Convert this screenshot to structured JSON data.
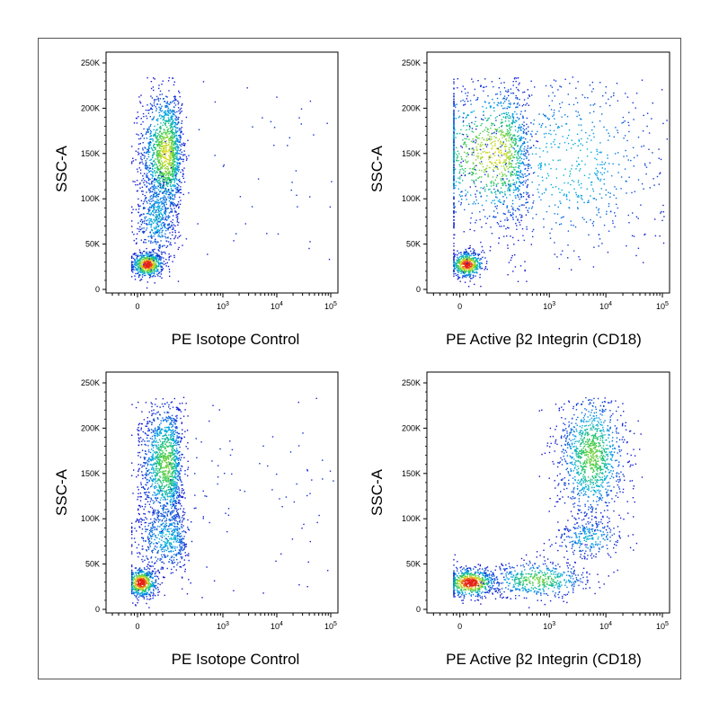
{
  "chart_data": [
    {
      "type": "scatter",
      "xlabel": "PE Isotope Control",
      "ylabel": "SSC-A",
      "x_scale": "biexponential",
      "x_ticks": [
        "0",
        "10^3",
        "10^4",
        "10^5"
      ],
      "y_ticks": [
        "0",
        "50K",
        "100K",
        "150K",
        "200K",
        "250K"
      ],
      "ylim": [
        0,
        250000
      ],
      "color_map": "density (blue-green-yellow-red)",
      "populations": [
        {
          "x_center": 30,
          "y_center": 28000,
          "spread_x": 25,
          "spread_y": 7000,
          "relative_size": 0.22,
          "peak": "red"
        },
        {
          "x_center": 90,
          "y_center": 150000,
          "spread_x": 40,
          "spread_y": 35000,
          "relative_size": 0.55,
          "peak": "yellow-green"
        },
        {
          "x_center": 60,
          "y_center": 80000,
          "spread_x": 35,
          "spread_y": 25000,
          "relative_size": 0.18,
          "peak": "blue"
        },
        {
          "x_center": 3000,
          "y_center": 130000,
          "spread_x": 20000,
          "spread_y": 90000,
          "relative_size": 0.05,
          "peak": "sparse"
        }
      ]
    },
    {
      "type": "scatter",
      "xlabel": "PE Active β2 Integrin (CD18)",
      "ylabel": "SSC-A",
      "x_scale": "biexponential",
      "x_ticks": [
        "0",
        "10^3",
        "10^4",
        "10^5"
      ],
      "y_ticks": [
        "0",
        "50K",
        "100K",
        "150K",
        "200K",
        "250K"
      ],
      "ylim": [
        0,
        250000
      ],
      "color_map": "density (blue-green-yellow-red)",
      "populations": [
        {
          "x_center": 20,
          "y_center": 28000,
          "spread_x": 25,
          "spread_y": 7000,
          "relative_size": 0.2,
          "peak": "red"
        },
        {
          "x_center": 120,
          "y_center": 150000,
          "spread_x": 150,
          "spread_y": 40000,
          "relative_size": 0.5,
          "peak": "yellow-green"
        },
        {
          "x_center": 2000,
          "y_center": 140000,
          "spread_x": 5000,
          "spread_y": 60000,
          "relative_size": 0.3,
          "peak": "blue"
        }
      ]
    },
    {
      "type": "scatter",
      "xlabel": "PE Isotope Control",
      "ylabel": "SSC-A",
      "x_scale": "biexponential",
      "x_ticks": [
        "0",
        "10^3",
        "10^4",
        "10^5"
      ],
      "y_ticks": [
        "0",
        "50K",
        "100K",
        "150K",
        "200K",
        "250K"
      ],
      "ylim": [
        0,
        250000
      ],
      "color_map": "density (blue-green-yellow-red)",
      "populations": [
        {
          "x_center": 10,
          "y_center": 30000,
          "spread_x": 25,
          "spread_y": 8000,
          "relative_size": 0.22,
          "peak": "red"
        },
        {
          "x_center": 90,
          "y_center": 160000,
          "spread_x": 40,
          "spread_y": 35000,
          "relative_size": 0.5,
          "peak": "green"
        },
        {
          "x_center": 100,
          "y_center": 80000,
          "spread_x": 60,
          "spread_y": 20000,
          "relative_size": 0.2,
          "peak": "blue"
        },
        {
          "x_center": 3000,
          "y_center": 150000,
          "spread_x": 20000,
          "spread_y": 70000,
          "relative_size": 0.08,
          "peak": "sparse"
        }
      ]
    },
    {
      "type": "scatter",
      "xlabel": "PE Active β2 Integrin (CD18)",
      "ylabel": "SSC-A",
      "x_scale": "biexponential",
      "x_ticks": [
        "0",
        "10^3",
        "10^4",
        "10^5"
      ],
      "y_ticks": [
        "0",
        "50K",
        "100K",
        "150K",
        "200K",
        "250K"
      ],
      "ylim": [
        0,
        250000
      ],
      "color_map": "density (blue-green-yellow-red)",
      "populations": [
        {
          "x_center": 30,
          "y_center": 30000,
          "spread_x": 40,
          "spread_y": 8000,
          "relative_size": 0.25,
          "peak": "red"
        },
        {
          "x_center": 600,
          "y_center": 33000,
          "spread_x": 600,
          "spread_y": 10000,
          "relative_size": 0.2,
          "peak": "green"
        },
        {
          "x_center": 5500,
          "y_center": 170000,
          "spread_x": 3000,
          "spread_y": 35000,
          "relative_size": 0.45,
          "peak": "green"
        },
        {
          "x_center": 5000,
          "y_center": 80000,
          "spread_x": 3000,
          "spread_y": 12000,
          "relative_size": 0.1,
          "peak": "blue"
        }
      ]
    }
  ]
}
